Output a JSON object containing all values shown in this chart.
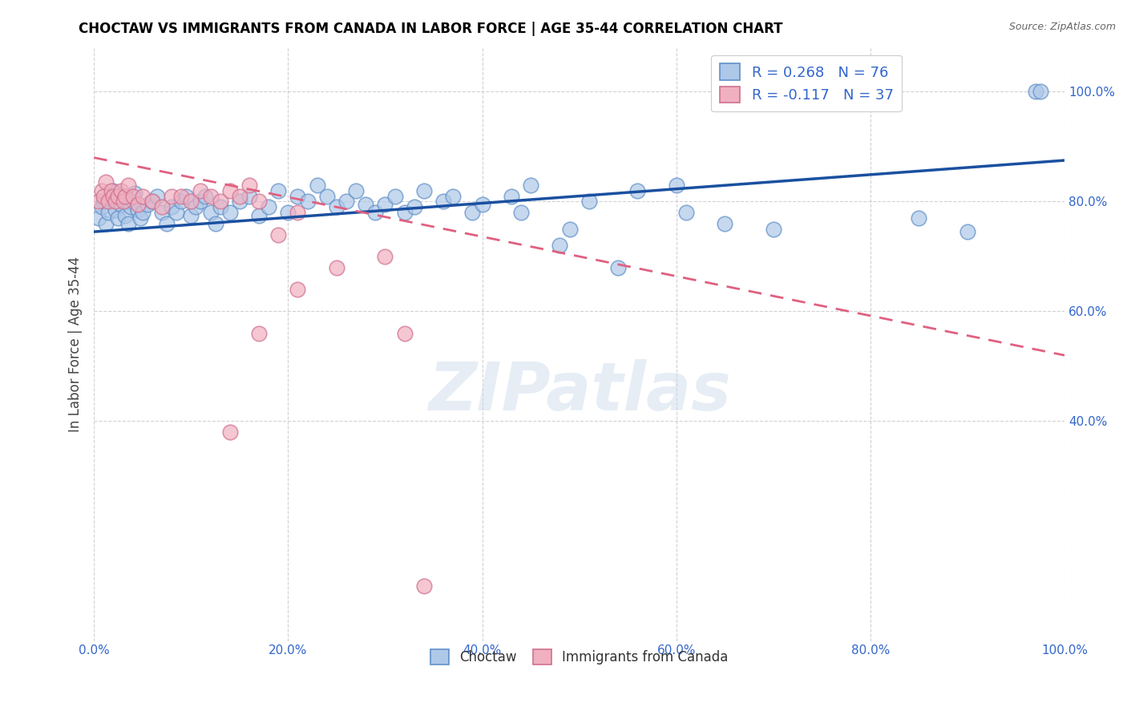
{
  "title": "CHOCTAW VS IMMIGRANTS FROM CANADA IN LABOR FORCE | AGE 35-44 CORRELATION CHART",
  "source": "Source: ZipAtlas.com",
  "ylabel": "In Labor Force | Age 35-44",
  "xlim": [
    0.0,
    1.0
  ],
  "ylim": [
    0.0,
    1.08
  ],
  "x_ticks": [
    0.0,
    0.2,
    0.4,
    0.6,
    0.8,
    1.0
  ],
  "x_tick_labels": [
    "0.0%",
    "20.0%",
    "40.0%",
    "60.0%",
    "80.0%",
    "100.0%"
  ],
  "y_ticks": [
    0.4,
    0.6,
    0.8,
    1.0
  ],
  "y_tick_labels": [
    "40.0%",
    "60.0%",
    "80.0%",
    "100.0%"
  ],
  "blue_fill": "#aec8e8",
  "blue_edge": "#6090c8",
  "pink_fill": "#f0b0c0",
  "pink_edge": "#d07090",
  "blue_line_color": "#1a50a0",
  "pink_line_color": "#e06080",
  "tick_color": "#3366cc",
  "legend_R_blue": "R = 0.268",
  "legend_N_blue": "N = 76",
  "legend_R_pink": "R = -0.117",
  "legend_N_pink": "N = 37",
  "watermark": "ZIPatlas",
  "blue_line_x0": 0.0,
  "blue_line_y0": 0.745,
  "blue_line_x1": 1.0,
  "blue_line_y1": 0.875,
  "pink_line_x0": 0.0,
  "pink_line_y0": 0.88,
  "pink_line_x1": 1.0,
  "pink_line_y1": 0.52,
  "blue_x": [
    0.005,
    0.008,
    0.01,
    0.012,
    0.015,
    0.018,
    0.02,
    0.022,
    0.025,
    0.028,
    0.03,
    0.032,
    0.035,
    0.038,
    0.04,
    0.042,
    0.045,
    0.048,
    0.05,
    0.055,
    0.06,
    0.065,
    0.07,
    0.075,
    0.08,
    0.085,
    0.09,
    0.095,
    0.1,
    0.105,
    0.11,
    0.115,
    0.12,
    0.125,
    0.13,
    0.14,
    0.15,
    0.16,
    0.17,
    0.18,
    0.19,
    0.2,
    0.21,
    0.22,
    0.23,
    0.24,
    0.25,
    0.26,
    0.27,
    0.28,
    0.29,
    0.3,
    0.31,
    0.32,
    0.33,
    0.34,
    0.36,
    0.37,
    0.39,
    0.4,
    0.43,
    0.44,
    0.45,
    0.48,
    0.49,
    0.51,
    0.54,
    0.56,
    0.6,
    0.61,
    0.65,
    0.7,
    0.85,
    0.9,
    0.97,
    0.975
  ],
  "blue_y": [
    0.77,
    0.79,
    0.8,
    0.76,
    0.78,
    0.81,
    0.82,
    0.785,
    0.77,
    0.795,
    0.81,
    0.775,
    0.76,
    0.79,
    0.8,
    0.815,
    0.785,
    0.77,
    0.78,
    0.795,
    0.8,
    0.81,
    0.78,
    0.76,
    0.79,
    0.78,
    0.8,
    0.81,
    0.775,
    0.79,
    0.8,
    0.81,
    0.78,
    0.76,
    0.79,
    0.78,
    0.8,
    0.81,
    0.775,
    0.79,
    0.82,
    0.78,
    0.81,
    0.8,
    0.83,
    0.81,
    0.79,
    0.8,
    0.82,
    0.795,
    0.78,
    0.795,
    0.81,
    0.78,
    0.79,
    0.82,
    0.8,
    0.81,
    0.78,
    0.795,
    0.81,
    0.78,
    0.83,
    0.72,
    0.75,
    0.8,
    0.68,
    0.82,
    0.83,
    0.78,
    0.76,
    0.75,
    0.77,
    0.745,
    1.0,
    1.0
  ],
  "pink_x": [
    0.005,
    0.008,
    0.01,
    0.012,
    0.015,
    0.018,
    0.02,
    0.022,
    0.025,
    0.028,
    0.03,
    0.032,
    0.035,
    0.04,
    0.045,
    0.05,
    0.06,
    0.07,
    0.08,
    0.09,
    0.1,
    0.11,
    0.12,
    0.13,
    0.14,
    0.15,
    0.16,
    0.17,
    0.19,
    0.21,
    0.14,
    0.17,
    0.21,
    0.25,
    0.3,
    0.32,
    0.34
  ],
  "pink_y": [
    0.8,
    0.82,
    0.81,
    0.835,
    0.8,
    0.82,
    0.81,
    0.8,
    0.81,
    0.82,
    0.8,
    0.81,
    0.83,
    0.81,
    0.795,
    0.81,
    0.8,
    0.79,
    0.81,
    0.81,
    0.8,
    0.82,
    0.81,
    0.8,
    0.82,
    0.81,
    0.83,
    0.8,
    0.74,
    0.78,
    0.38,
    0.56,
    0.64,
    0.68,
    0.7,
    0.56,
    0.1
  ]
}
